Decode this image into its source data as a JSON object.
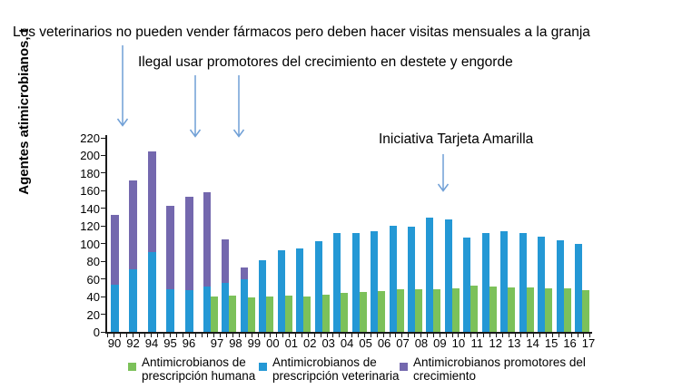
{
  "chart_data": {
    "type": "bar",
    "title": "",
    "xlabel": "",
    "ylabel": "Agentes atimicrobianos, t",
    "ylim": [
      0,
      220
    ],
    "yticks": [
      0,
      20,
      40,
      60,
      80,
      100,
      120,
      140,
      160,
      180,
      200,
      220
    ],
    "grid": false,
    "legend_position": "bottom",
    "categories": [
      "90",
      "92",
      "94",
      "95",
      "96",
      "97",
      "98",
      "99",
      "00",
      "01",
      "02",
      "03",
      "04",
      "05",
      "06",
      "07",
      "08",
      "09",
      "10",
      "11",
      "12",
      "13",
      "14",
      "15",
      "16",
      "17"
    ],
    "stacking_note": "veterinary and growth-promoter series are stacked in one bar; human-prescription series is a separate grouped bar shown from 97 onward",
    "series": [
      {
        "name": "Antimicrobianos de prescripción humana",
        "color": "#7CC15A",
        "stack_group": "separate",
        "values": [
          null,
          null,
          null,
          null,
          null,
          40,
          41,
          39,
          40,
          41,
          40,
          42,
          44,
          45,
          46,
          48,
          48,
          48,
          49,
          52,
          51,
          50,
          50,
          49,
          49,
          47
        ]
      },
      {
        "name": "Antimicrobianos de prescripción veterinaria",
        "color": "#2498D5",
        "stack_group": "vet-stack",
        "values": [
          53,
          71,
          90,
          48,
          47,
          51,
          56,
          60,
          81,
          93,
          95,
          103,
          112,
          112,
          114,
          120,
          119,
          130,
          127,
          107,
          112,
          114,
          112,
          108,
          104,
          100
        ]
      },
      {
        "name": "Antimicrobianos promotores del crecimiento",
        "color": "#7468AE",
        "stack_group": "vet-stack",
        "values": [
          80,
          101,
          115,
          95,
          106,
          107,
          49,
          13,
          0,
          0,
          0,
          0,
          0,
          0,
          0,
          0,
          0,
          0,
          0,
          0,
          0,
          0,
          0,
          0,
          0,
          0
        ]
      }
    ]
  },
  "annotations": [
    {
      "text": "Los veterinarios no pueden vender fármacos pero deben hacer visitas mensuales a la granja",
      "arrow_points_to": "barras 90-92"
    },
    {
      "text": "Ilegal usar promotores del crecimiento en destete y engorde",
      "arrow_points_to": "barras 96-99"
    },
    {
      "text": "Iniciativa Tarjeta Amarilla",
      "arrow_points_to": "barras 09-10"
    }
  ],
  "legend": {
    "items": [
      {
        "line1": "Antimicrobianos de",
        "line2": "prescripción humana",
        "color": "#7CC15A"
      },
      {
        "line1": "Antimicrobianos de",
        "line2": "prescripción veterinaria",
        "color": "#2498D5"
      },
      {
        "line1": "Antimicrobianos promotores del",
        "line2": "crecimiento",
        "color": "#7468AE"
      }
    ]
  },
  "colors": {
    "human": "#7CC15A",
    "veterinary": "#2498D5",
    "growth_promoter": "#7468AE",
    "arrow": "#6F9FD6",
    "axis": "#1a1a1a"
  }
}
